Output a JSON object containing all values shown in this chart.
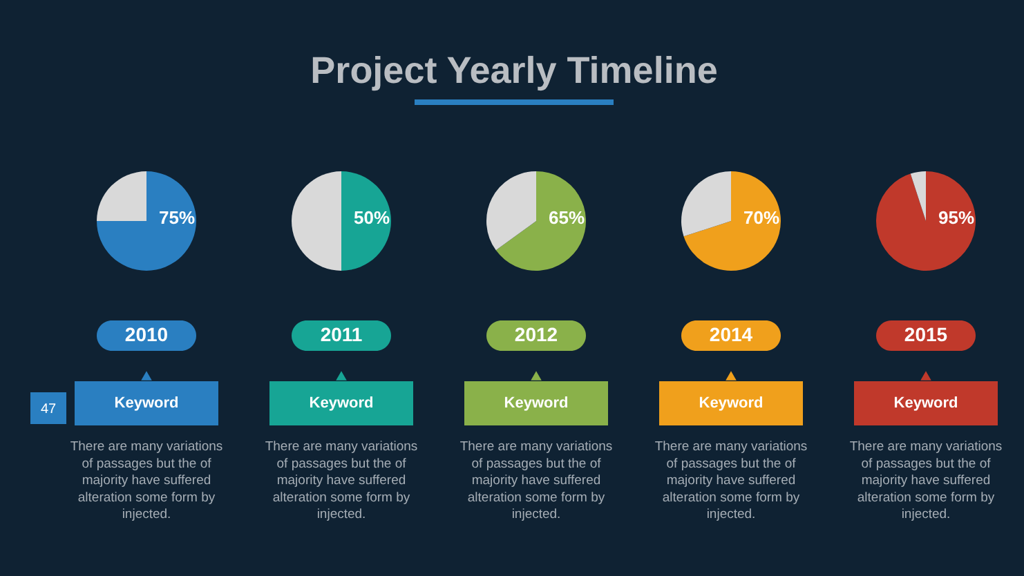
{
  "chart_data": [
    {
      "type": "other",
      "title": "Project Yearly Timeline",
      "annotations": [
        "47"
      ]
    },
    {
      "type": "pie",
      "title": "2010",
      "categories": [
        null,
        null
      ],
      "values": [
        75,
        25
      ],
      "colors": [
        "#2a7fc1",
        "#d9d9d9"
      ],
      "value_labels": [
        "75%",
        null
      ],
      "annotations": [
        "Keyword",
        "There are many variations of passages but the of majority have suffered alteration some form by injected."
      ]
    },
    {
      "type": "pie",
      "title": "2011",
      "categories": [
        null,
        null
      ],
      "values": [
        50,
        50
      ],
      "colors": [
        "#17a595",
        "#d9d9d9"
      ],
      "value_labels": [
        "50%",
        null
      ],
      "annotations": [
        "Keyword",
        "There are many variations of passages but the of majority have suffered alteration some form by injected."
      ]
    },
    {
      "type": "pie",
      "title": "2012",
      "categories": [
        null,
        null
      ],
      "values": [
        65,
        35
      ],
      "colors": [
        "#8ab14a",
        "#d9d9d9"
      ],
      "value_labels": [
        "65%",
        null
      ],
      "annotations": [
        "Keyword",
        "There are many variations of passages but the of majority have suffered alteration some form by injected."
      ]
    },
    {
      "type": "pie",
      "title": "2014",
      "categories": [
        null,
        null
      ],
      "values": [
        70,
        30
      ],
      "colors": [
        "#f0a01c",
        "#d9d9d9"
      ],
      "value_labels": [
        "70%",
        null
      ],
      "annotations": [
        "Keyword",
        "There are many variations of passages but the of majority have suffered alteration some form by injected."
      ]
    },
    {
      "type": "pie",
      "title": "2015",
      "categories": [
        null,
        null
      ],
      "values": [
        95,
        5
      ],
      "colors": [
        "#c0392b",
        "#d9d9d9"
      ],
      "value_labels": [
        "95%",
        null
      ],
      "annotations": [
        "Keyword",
        "There are many variations of passages but the of majority have suffered alteration some form by injected."
      ]
    }
  ]
}
